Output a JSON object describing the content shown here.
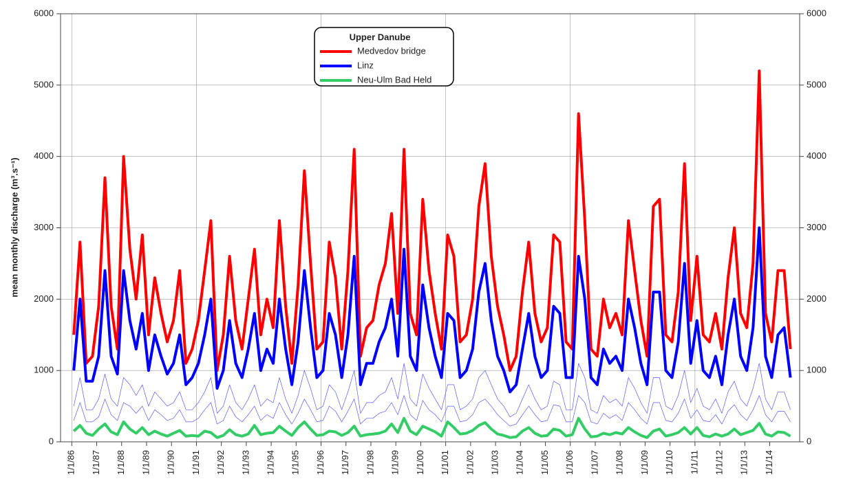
{
  "chart_data": {
    "type": "line",
    "legend_title": "Upper Danube",
    "legend_position": "upper center",
    "ylabel": "mean monthly discharge (m³.s⁻¹)",
    "xlim": [
      1985.55,
      2015.2
    ],
    "xticks": [
      {
        "value": 1986,
        "label": "1/1/86"
      },
      {
        "value": 1987,
        "label": "1/1/87"
      },
      {
        "value": 1988,
        "label": "1/1/88"
      },
      {
        "value": 1989,
        "label": "1/1/89"
      },
      {
        "value": 1990,
        "label": "1/1/90"
      },
      {
        "value": 1991,
        "label": "1/1/91"
      },
      {
        "value": 1992,
        "label": "1/1/92"
      },
      {
        "value": 1993,
        "label": "1/1/93"
      },
      {
        "value": 1994,
        "label": "1/1/94"
      },
      {
        "value": 1995,
        "label": "1/1/95"
      },
      {
        "value": 1996,
        "label": "1/1/96"
      },
      {
        "value": 1997,
        "label": "1/1/97"
      },
      {
        "value": 1998,
        "label": "1/1/98"
      },
      {
        "value": 1999,
        "label": "1/1/99"
      },
      {
        "value": 2000,
        "label": "1/1/00"
      },
      {
        "value": 2001,
        "label": "1/1/01"
      },
      {
        "value": 2002,
        "label": "1/1/02"
      },
      {
        "value": 2003,
        "label": "1/1/03"
      },
      {
        "value": 2004,
        "label": "1/1/04"
      },
      {
        "value": 2005,
        "label": "1/1/05"
      },
      {
        "value": 2006,
        "label": "1/1/06"
      },
      {
        "value": 2007,
        "label": "1/1/07"
      },
      {
        "value": 2008,
        "label": "1/1/08"
      },
      {
        "value": 2009,
        "label": "1/1/09"
      },
      {
        "value": 2010,
        "label": "1/1/10"
      },
      {
        "value": 2011,
        "label": "1/1/11"
      },
      {
        "value": 2012,
        "label": "1/1/12"
      },
      {
        "value": 2013,
        "label": "1/1/13"
      },
      {
        "value": 2014,
        "label": "1/1/14"
      }
    ],
    "xgrid": [
      1986,
      1991,
      1996,
      2001,
      2006,
      2011
    ],
    "ylim": [
      0,
      6000
    ],
    "yticks": [
      0,
      1000,
      2000,
      3000,
      4000,
      5000,
      6000
    ],
    "y2lim": [
      0,
      6000
    ],
    "y2ticks": [
      0,
      1000,
      2000,
      3000,
      4000,
      5000,
      6000
    ],
    "grid": true,
    "x": [
      1986.08,
      1986.33,
      1986.58,
      1986.83,
      1987.08,
      1987.33,
      1987.58,
      1987.83,
      1988.08,
      1988.33,
      1988.58,
      1988.83,
      1989.08,
      1989.33,
      1989.58,
      1989.83,
      1990.08,
      1990.33,
      1990.58,
      1990.83,
      1991.08,
      1991.33,
      1991.58,
      1991.83,
      1992.08,
      1992.33,
      1992.58,
      1992.83,
      1993.08,
      1993.33,
      1993.58,
      1993.83,
      1994.08,
      1994.33,
      1994.58,
      1994.83,
      1995.08,
      1995.33,
      1995.58,
      1995.83,
      1996.08,
      1996.33,
      1996.58,
      1996.83,
      1997.08,
      1997.33,
      1997.58,
      1997.83,
      1998.08,
      1998.33,
      1998.58,
      1998.83,
      1999.08,
      1999.33,
      1999.58,
      1999.83,
      2000.08,
      2000.33,
      2000.58,
      2000.83,
      2001.08,
      2001.33,
      2001.58,
      2001.83,
      2002.08,
      2002.33,
      2002.58,
      2002.83,
      2003.08,
      2003.33,
      2003.58,
      2003.83,
      2004.08,
      2004.33,
      2004.58,
      2004.83,
      2005.08,
      2005.33,
      2005.58,
      2005.83,
      2006.08,
      2006.33,
      2006.58,
      2006.83,
      2007.08,
      2007.33,
      2007.58,
      2007.83,
      2008.08,
      2008.33,
      2008.58,
      2008.83,
      2009.08,
      2009.33,
      2009.58,
      2009.83,
      2010.08,
      2010.33,
      2010.58,
      2010.83,
      2011.08,
      2011.33,
      2011.58,
      2011.83,
      2012.08,
      2012.33,
      2012.58,
      2012.83,
      2013.08,
      2013.33,
      2013.58,
      2013.83,
      2014.08,
      2014.33,
      2014.58,
      2014.83
    ],
    "series": [
      {
        "color": "#5a5aff",
        "width": 0.7,
        "values": [
          500,
          900,
          450,
          450,
          600,
          950,
          600,
          500,
          900,
          800,
          650,
          800,
          500,
          700,
          600,
          500,
          550,
          700,
          450,
          450,
          550,
          700,
          900,
          400,
          500,
          800,
          550,
          450,
          600,
          800,
          500,
          600,
          550,
          900,
          600,
          400,
          650,
          1000,
          750,
          450,
          500,
          800,
          700,
          450,
          700,
          1000,
          400,
          550,
          550,
          650,
          700,
          900,
          600,
          1100,
          600,
          500,
          950,
          750,
          600,
          450,
          800,
          800,
          450,
          500,
          600,
          900,
          1000,
          800,
          600,
          500,
          350,
          400,
          600,
          800,
          600,
          450,
          500,
          850,
          800,
          450,
          450,
          1100,
          900,
          450,
          400,
          650,
          550,
          600,
          500,
          900,
          750,
          550,
          400,
          900,
          900,
          500,
          450,
          650,
          1000,
          550,
          750,
          500,
          450,
          600,
          400,
          700,
          850,
          600,
          500,
          750,
          1100,
          600,
          450,
          700,
          700,
          450
        ]
      },
      {
        "color": "#5a5aff",
        "width": 0.7,
        "values": [
          300,
          550,
          280,
          280,
          350,
          600,
          380,
          300,
          550,
          500,
          400,
          500,
          300,
          450,
          380,
          300,
          330,
          450,
          280,
          280,
          330,
          450,
          550,
          250,
          300,
          500,
          350,
          280,
          380,
          500,
          300,
          380,
          330,
          550,
          380,
          250,
          400,
          600,
          450,
          280,
          300,
          500,
          430,
          280,
          430,
          600,
          250,
          330,
          330,
          400,
          430,
          550,
          380,
          650,
          380,
          300,
          580,
          450,
          380,
          280,
          500,
          500,
          280,
          300,
          380,
          550,
          600,
          500,
          380,
          300,
          220,
          250,
          380,
          500,
          380,
          280,
          300,
          520,
          500,
          280,
          280,
          650,
          550,
          280,
          250,
          400,
          330,
          380,
          300,
          550,
          450,
          330,
          250,
          550,
          550,
          300,
          280,
          400,
          600,
          330,
          450,
          300,
          280,
          380,
          250,
          430,
          520,
          380,
          300,
          450,
          650,
          380,
          280,
          430,
          430,
          280
        ]
      },
      {
        "name": "Medvedov bridge",
        "color": "#ff0000",
        "width": 4,
        "values": [
          1500,
          2800,
          1100,
          1200,
          1900,
          3700,
          1900,
          1300,
          4000,
          2700,
          2000,
          2900,
          1500,
          2300,
          1800,
          1400,
          1700,
          2400,
          1100,
          1300,
          1700,
          2400,
          3100,
          1000,
          1500,
          2600,
          1700,
          1300,
          2000,
          2700,
          1500,
          2000,
          1600,
          3100,
          1900,
          1100,
          2200,
          3800,
          2500,
          1300,
          1400,
          2800,
          2300,
          1300,
          2400,
          4100,
          1200,
          1600,
          1700,
          2200,
          2500,
          3200,
          1800,
          4100,
          1800,
          1500,
          3400,
          2400,
          1800,
          1300,
          2900,
          2600,
          1400,
          1500,
          2000,
          3300,
          3900,
          2600,
          1900,
          1500,
          1000,
          1200,
          2100,
          2800,
          1800,
          1400,
          1600,
          2900,
          2800,
          1400,
          1300,
          4600,
          3100,
          1300,
          1200,
          2000,
          1600,
          1800,
          1500,
          3100,
          2400,
          1700,
          1200,
          3300,
          3400,
          1500,
          1400,
          2100,
          3900,
          1700,
          2600,
          1500,
          1400,
          1800,
          1300,
          2300,
          3000,
          1800,
          1600,
          2500,
          5200,
          1800,
          1400,
          2400,
          2400,
          1300
        ]
      },
      {
        "name": "Linz",
        "color": "#0000ff",
        "width": 4,
        "values": [
          1000,
          2000,
          850,
          850,
          1200,
          2400,
          1200,
          950,
          2400,
          1700,
          1300,
          1800,
          1000,
          1500,
          1200,
          950,
          1100,
          1500,
          800,
          900,
          1100,
          1500,
          2000,
          750,
          1000,
          1700,
          1100,
          900,
          1300,
          1800,
          1000,
          1300,
          1100,
          2000,
          1300,
          800,
          1400,
          2400,
          1600,
          900,
          1000,
          1800,
          1500,
          900,
          1500,
          2600,
          800,
          1100,
          1100,
          1400,
          1600,
          2000,
          1200,
          2700,
          1200,
          1000,
          2200,
          1600,
          1200,
          900,
          1800,
          1700,
          900,
          1000,
          1300,
          2100,
          2500,
          1700,
          1200,
          1000,
          700,
          800,
          1300,
          1800,
          1200,
          900,
          1000,
          1900,
          1800,
          900,
          900,
          2600,
          2000,
          900,
          800,
          1300,
          1100,
          1200,
          1000,
          2000,
          1600,
          1100,
          800,
          2100,
          2100,
          1000,
          900,
          1400,
          2500,
          1100,
          1700,
          1000,
          900,
          1200,
          800,
          1500,
          2000,
          1200,
          1000,
          1600,
          3000,
          1200,
          900,
          1500,
          1600,
          900
        ]
      },
      {
        "name": "Neu-Ulm Bad Held",
        "color": "#33cc66",
        "width": 4,
        "values": [
          150,
          230,
          120,
          90,
          180,
          250,
          140,
          100,
          280,
          180,
          120,
          200,
          100,
          150,
          110,
          80,
          120,
          160,
          80,
          90,
          80,
          150,
          130,
          60,
          90,
          170,
          100,
          80,
          110,
          230,
          100,
          120,
          130,
          220,
          150,
          90,
          200,
          280,
          180,
          90,
          100,
          150,
          140,
          90,
          130,
          220,
          80,
          100,
          110,
          120,
          150,
          250,
          130,
          330,
          150,
          100,
          220,
          180,
          140,
          80,
          280,
          200,
          110,
          120,
          160,
          230,
          270,
          180,
          110,
          90,
          60,
          70,
          150,
          200,
          120,
          80,
          90,
          180,
          160,
          80,
          100,
          330,
          180,
          70,
          80,
          120,
          100,
          130,
          110,
          200,
          140,
          90,
          60,
          150,
          180,
          80,
          100,
          130,
          200,
          110,
          200,
          90,
          70,
          110,
          80,
          110,
          180,
          100,
          130,
          160,
          260,
          110,
          80,
          140,
          130,
          80
        ]
      }
    ]
  }
}
